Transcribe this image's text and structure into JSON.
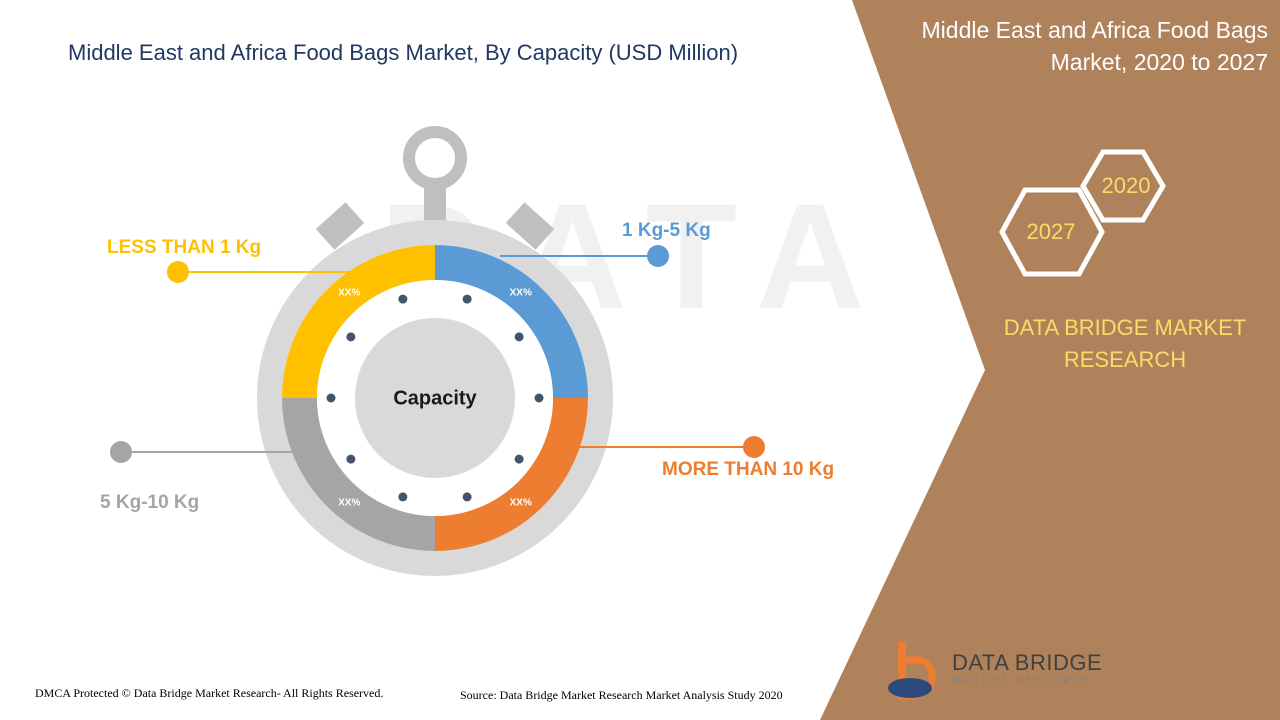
{
  "header": {
    "title": "Middle East and Africa Food Bags Market, By Capacity (USD Million)"
  },
  "side_panel": {
    "title_line1": "Middle East and Africa Food Bags",
    "title_line2": "Market, 2020 to 2027",
    "year_start": "2020",
    "year_end": "2027",
    "brand_line1": "DATA BRIDGE MARKET",
    "brand_line2": "RESEARCH",
    "panel_color": "#b0825c",
    "accent_color": "#ffd966"
  },
  "chart_data": {
    "type": "pie",
    "center_label": "Capacity",
    "categories": [
      "LESS THAN 1 Kg",
      "1 Kg-5 Kg",
      "MORE THAN 10 Kg",
      "5 Kg-10 Kg"
    ],
    "value_labels": [
      "XX%",
      "XX%",
      "XX%",
      "XX%"
    ],
    "colors": [
      "#ffc000",
      "#5b9bd5",
      "#ed7d31",
      "#a5a5a5"
    ],
    "label_colors": [
      "#ffc000",
      "#5b9bd5",
      "#ed7d31",
      "#a5a5a5"
    ]
  },
  "footer": {
    "copyright": "DMCA Protected © Data Bridge Market Research- All Rights Reserved.",
    "source": "Source: Data Bridge Market Research Market Analysis Study 2020"
  },
  "logo": {
    "name": "DATA BRIDGE",
    "tagline": "MARKET RESEARCH"
  }
}
